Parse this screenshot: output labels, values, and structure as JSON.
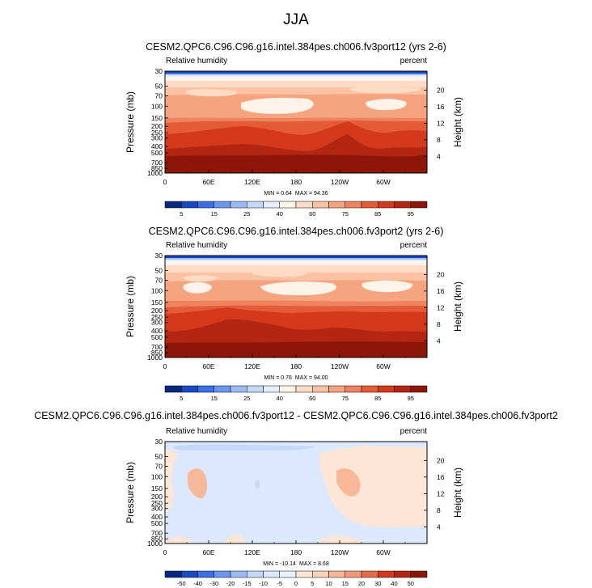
{
  "suptitle": "JJA",
  "colors": {
    "rh_levels": [
      "#08287f",
      "#1749c4",
      "#3a6fe6",
      "#6a97f2",
      "#9cbaf5",
      "#c5d8fa",
      "#e6efff",
      "#fff3ea",
      "#fddbc5",
      "#fbc3a3",
      "#f5a47f",
      "#ef835d",
      "#e55b37",
      "#d4391c",
      "#b42612",
      "#8e1609"
    ],
    "diff_levels": [
      "#08287f",
      "#1749c4",
      "#3a6fe6",
      "#6a97f2",
      "#9cbaf5",
      "#c5d8fa",
      "#dbe8fd",
      "#e9f1fe",
      "#fde6d6",
      "#fbd2b8",
      "#f7b899",
      "#f29a77",
      "#e86c4a",
      "#d4391c",
      "#b42612",
      "#8e1609"
    ]
  },
  "chart_data": [
    {
      "type": "heatmap",
      "title": "CESM2.QPC6.C96.C96.g16.intel.384pes.ch006.fv3port12 (yrs 2-6)",
      "subtitle_left": "Relative humidity",
      "subtitle_right": "percent",
      "ylabel": "Pressure (mb)",
      "ylabel_right": "Height (km)",
      "pressure_ticks": [
        "30",
        "50",
        "70",
        "100",
        "150",
        "200",
        "250",
        "300",
        "400",
        "500",
        "700",
        "850",
        "1000"
      ],
      "height_ticks": [
        "20",
        "16",
        "12",
        "8",
        "4"
      ],
      "x_ticks": [
        "0",
        "60E",
        "120E",
        "180",
        "120W",
        "60W"
      ],
      "min_label": "MIN = ",
      "min_value": "0.64",
      "max_label": "MAX = ",
      "max_value": "94.36",
      "colorbar_labels": [
        "5",
        "15",
        "25",
        "40",
        "60",
        "75",
        "85",
        "95"
      ]
    },
    {
      "type": "heatmap",
      "title": "CESM2.QPC6.C96.C96.g16.intel.384pes.ch006.fv3port2 (yrs 2-6)",
      "subtitle_left": "Relative humidity",
      "subtitle_right": "percent",
      "ylabel": "Pressure (mb)",
      "ylabel_right": "Height (km)",
      "pressure_ticks": [
        "30",
        "50",
        "70",
        "100",
        "150",
        "200",
        "250",
        "300",
        "400",
        "500",
        "700",
        "850",
        "1000"
      ],
      "height_ticks": [
        "20",
        "16",
        "12",
        "8",
        "4"
      ],
      "x_ticks": [
        "0",
        "60E",
        "120E",
        "180",
        "120W",
        "60W"
      ],
      "min_label": "MIN = ",
      "min_value": "0.76",
      "max_label": "MAX = ",
      "max_value": "94.00",
      "colorbar_labels": [
        "5",
        "15",
        "25",
        "40",
        "60",
        "75",
        "85",
        "95"
      ]
    },
    {
      "type": "heatmap",
      "title": "CESM2.QPC6.C96.C96.g16.intel.384pes.ch006.fv3port12 - CESM2.QPC6.C96.C96.g16.intel.384pes.ch006.fv3port2",
      "subtitle_left": "Relative humidity",
      "subtitle_right": "percent",
      "ylabel": "Pressure (mb)",
      "ylabel_right": "Height (km)",
      "pressure_ticks": [
        "30",
        "50",
        "70",
        "100",
        "150",
        "200",
        "250",
        "300",
        "400",
        "500",
        "700",
        "850",
        "1000"
      ],
      "height_ticks": [
        "20",
        "16",
        "12",
        "8",
        "4"
      ],
      "x_ticks": [
        "0",
        "60E",
        "120E",
        "180",
        "120W",
        "60W"
      ],
      "min_label": "MIN = ",
      "min_value": "-10.14",
      "max_label": "MAX = ",
      "max_value": "8.68",
      "colorbar_labels": [
        "-50",
        "-40",
        "-30",
        "-20",
        "-15",
        "-10",
        "-5",
        "0",
        "5",
        "10",
        "15",
        "20",
        "30",
        "40",
        "50"
      ]
    }
  ]
}
